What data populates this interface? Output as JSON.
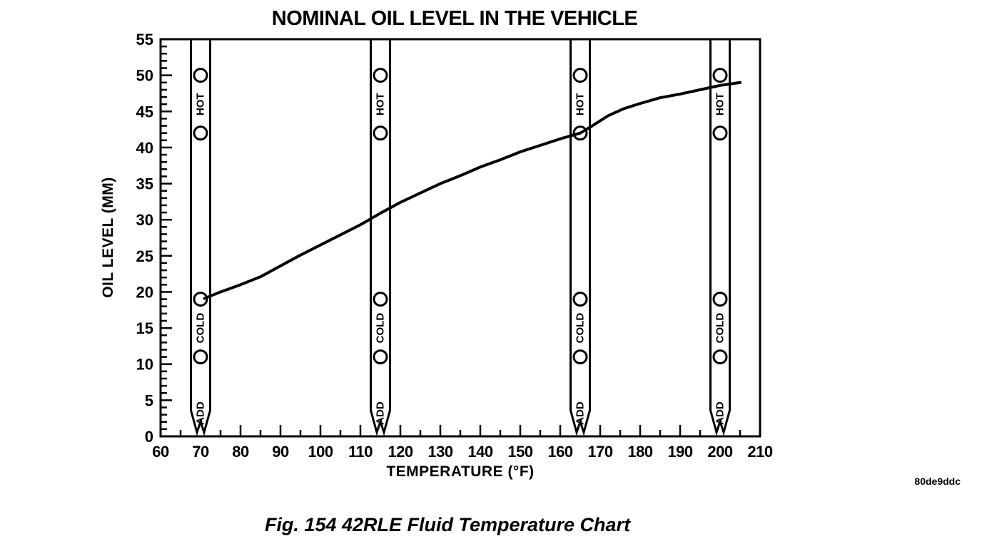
{
  "page": {
    "caption": "Fig. 154 42RLE Fluid Temperature Chart",
    "figure_code": "80de9ddc"
  },
  "chart_data": {
    "type": "line",
    "title": "NOMINAL OIL LEVEL IN THE VEHICLE",
    "xlabel": "TEMPERATURE (°F)",
    "ylabel": "OIL LEVEL (MM)",
    "xlim": [
      60,
      210
    ],
    "ylim": [
      0,
      55
    ],
    "x_tick_major": 10,
    "x_tick_minor": 5,
    "y_tick_major": 5,
    "y_tick_minor": 1,
    "grid": false,
    "legend": false,
    "series": [
      {
        "name": "nominal oil level curve",
        "x": [
          71,
          75,
          80,
          85,
          89,
          95,
          100,
          105,
          110,
          115,
          120,
          125,
          130,
          135,
          140,
          145,
          150,
          155,
          160,
          165,
          168,
          172,
          176,
          180,
          185,
          190,
          195,
          200,
          205
        ],
        "y": [
          19.1,
          20.0,
          21.0,
          22.1,
          23.3,
          25.1,
          26.5,
          27.9,
          29.3,
          30.9,
          32.4,
          33.7,
          35.0,
          36.1,
          37.3,
          38.3,
          39.4,
          40.3,
          41.2,
          42.0,
          43.0,
          44.4,
          45.4,
          46.1,
          46.9,
          47.4,
          48.0,
          48.6,
          49.0
        ]
      }
    ],
    "dipsticks": {
      "temperatures_f": [
        70,
        115,
        165,
        200
      ],
      "hole_levels_mm": [
        50,
        42,
        19,
        11
      ],
      "zone_labels": [
        {
          "text": "HOT",
          "level_mm": 46
        },
        {
          "text": "COLD",
          "level_mm": 15
        },
        {
          "text": "ADD",
          "level_mm": 3.2
        }
      ]
    },
    "colors": {
      "ink": "#000000",
      "background": "#ffffff"
    }
  }
}
